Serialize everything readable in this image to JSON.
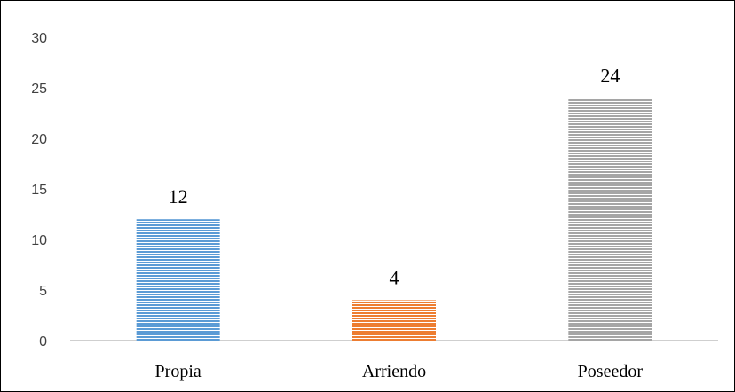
{
  "chart_data": {
    "type": "bar",
    "categories": [
      "Propia",
      "Arriendo",
      "Poseedor"
    ],
    "values": [
      12,
      4,
      24
    ],
    "data_labels": [
      "12",
      "4",
      "24"
    ],
    "yticks": [
      "0",
      "5",
      "10",
      "15",
      "20",
      "25",
      "30"
    ],
    "ylim": [
      0,
      30
    ],
    "title": "",
    "xlabel": "",
    "ylabel": "",
    "grid": false,
    "legend": "none",
    "bar_colors": [
      "#5B9BD5",
      "#ED7D31",
      "#A5A5A5"
    ],
    "bar_fill_pattern": "horizontal-stripes"
  }
}
